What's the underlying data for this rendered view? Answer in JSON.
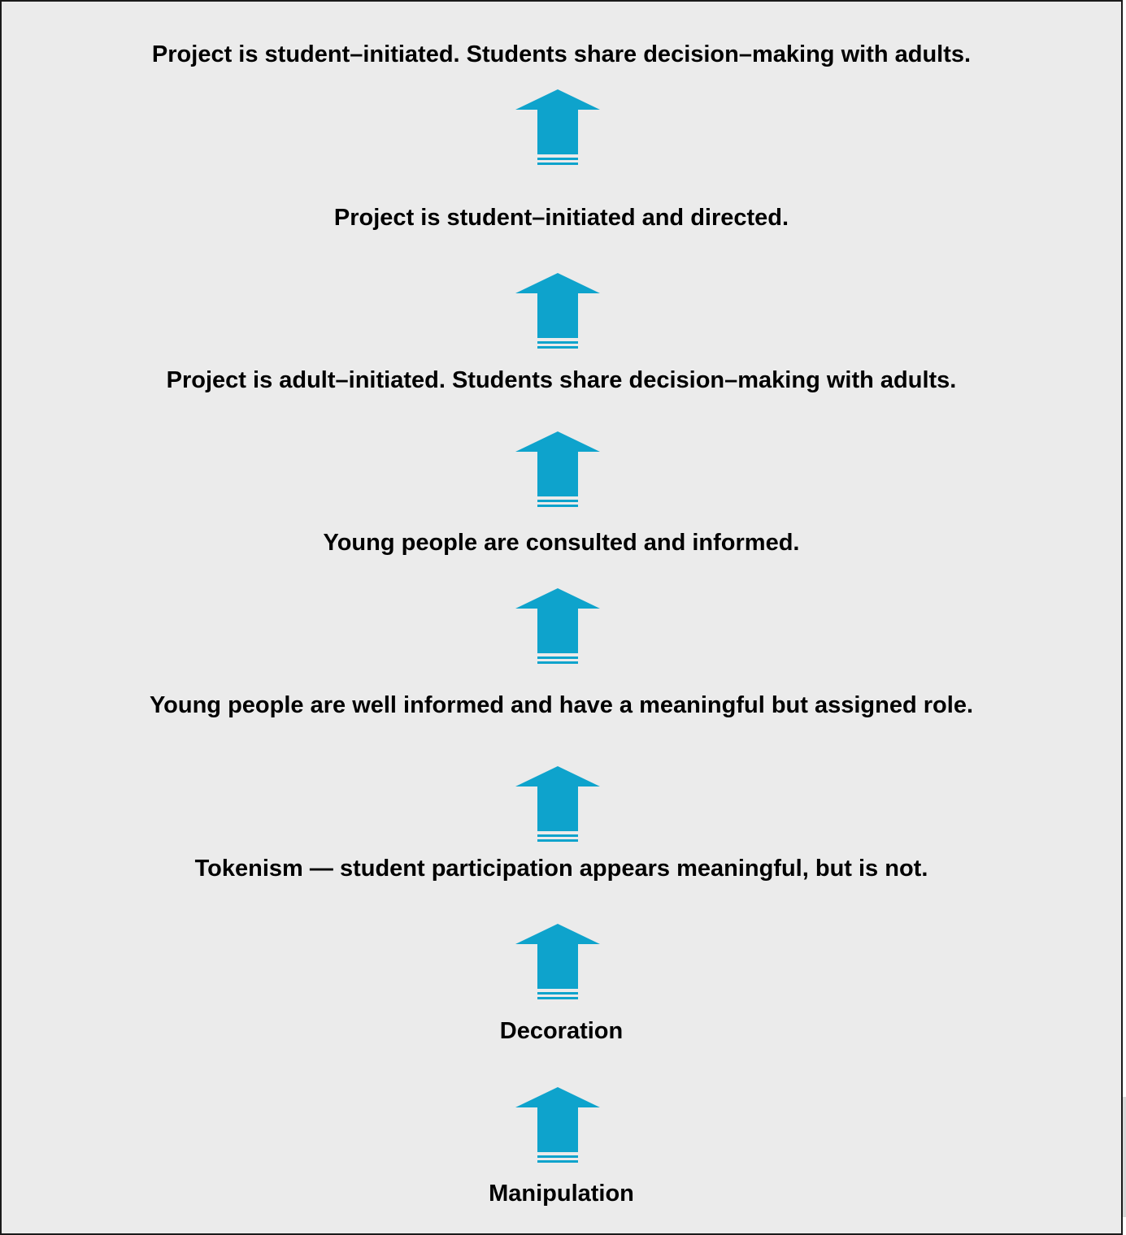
{
  "colors": {
    "background": "#ebebeb",
    "border": "#1a1a1a",
    "arrow": "#0ea3cc",
    "text": "#000000"
  },
  "levels": [
    {
      "text": "Project is student–initiated. Students share decision–making with adults."
    },
    {
      "text": "Project is student–initiated and directed."
    },
    {
      "text": "Project is adult–initiated. Students share decision–making with adults."
    },
    {
      "text": "Young people are consulted and informed."
    },
    {
      "text": "Young people are well informed and have a meaningful but assigned role."
    },
    {
      "text": "Tokenism — student participation appears meaningful, but is not."
    },
    {
      "text": "Decoration"
    },
    {
      "text": "Manipulation"
    }
  ],
  "arrows": [
    {
      "icon": "up-arrow-icon"
    },
    {
      "icon": "up-arrow-icon"
    },
    {
      "icon": "up-arrow-icon"
    },
    {
      "icon": "up-arrow-icon"
    },
    {
      "icon": "up-arrow-icon"
    },
    {
      "icon": "up-arrow-icon"
    },
    {
      "icon": "up-arrow-icon"
    }
  ]
}
